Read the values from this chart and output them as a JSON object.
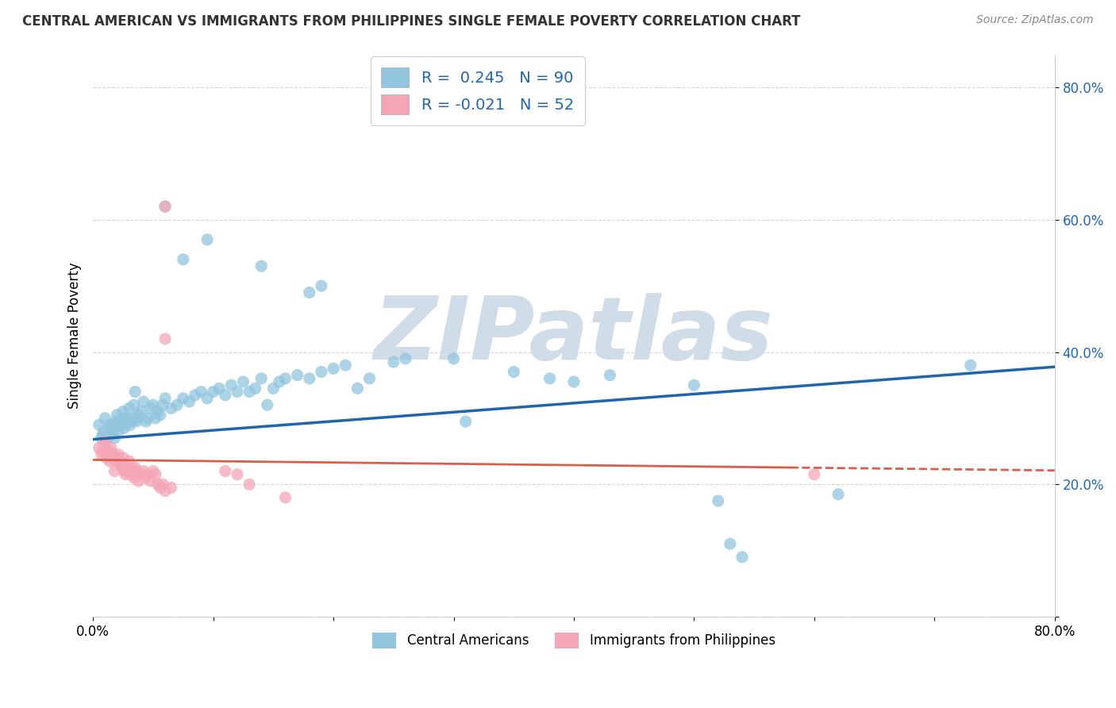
{
  "title": "CENTRAL AMERICAN VS IMMIGRANTS FROM PHILIPPINES SINGLE FEMALE POVERTY CORRELATION CHART",
  "source": "Source: ZipAtlas.com",
  "ylabel": "Single Female Poverty",
  "legend_label1": "Central Americans",
  "legend_label2": "Immigrants from Philippines",
  "r1": "0.245",
  "n1": "90",
  "r2": "-0.021",
  "n2": "52",
  "blue_color": "#92c5de",
  "pink_color": "#f4a6b8",
  "blue_line_color": "#2166ac",
  "pink_line_color": "#d6604d",
  "blue_scatter": [
    [
      0.005,
      0.29
    ],
    [
      0.007,
      0.27
    ],
    [
      0.008,
      0.275
    ],
    [
      0.009,
      0.28
    ],
    [
      0.01,
      0.3
    ],
    [
      0.011,
      0.265
    ],
    [
      0.012,
      0.27
    ],
    [
      0.013,
      0.275
    ],
    [
      0.014,
      0.29
    ],
    [
      0.015,
      0.285
    ],
    [
      0.016,
      0.28
    ],
    [
      0.017,
      0.29
    ],
    [
      0.018,
      0.27
    ],
    [
      0.019,
      0.295
    ],
    [
      0.02,
      0.305
    ],
    [
      0.021,
      0.28
    ],
    [
      0.022,
      0.29
    ],
    [
      0.023,
      0.295
    ],
    [
      0.024,
      0.3
    ],
    [
      0.025,
      0.31
    ],
    [
      0.026,
      0.285
    ],
    [
      0.027,
      0.29
    ],
    [
      0.028,
      0.3
    ],
    [
      0.029,
      0.295
    ],
    [
      0.03,
      0.315
    ],
    [
      0.031,
      0.29
    ],
    [
      0.032,
      0.295
    ],
    [
      0.033,
      0.3
    ],
    [
      0.034,
      0.32
    ],
    [
      0.035,
      0.34
    ],
    [
      0.036,
      0.295
    ],
    [
      0.037,
      0.3
    ],
    [
      0.038,
      0.305
    ],
    [
      0.04,
      0.31
    ],
    [
      0.042,
      0.325
    ],
    [
      0.044,
      0.295
    ],
    [
      0.046,
      0.3
    ],
    [
      0.048,
      0.315
    ],
    [
      0.05,
      0.32
    ],
    [
      0.052,
      0.3
    ],
    [
      0.054,
      0.31
    ],
    [
      0.056,
      0.305
    ],
    [
      0.058,
      0.32
    ],
    [
      0.06,
      0.33
    ],
    [
      0.065,
      0.315
    ],
    [
      0.07,
      0.32
    ],
    [
      0.075,
      0.33
    ],
    [
      0.08,
      0.325
    ],
    [
      0.085,
      0.335
    ],
    [
      0.09,
      0.34
    ],
    [
      0.095,
      0.33
    ],
    [
      0.1,
      0.34
    ],
    [
      0.105,
      0.345
    ],
    [
      0.11,
      0.335
    ],
    [
      0.115,
      0.35
    ],
    [
      0.12,
      0.34
    ],
    [
      0.125,
      0.355
    ],
    [
      0.13,
      0.34
    ],
    [
      0.135,
      0.345
    ],
    [
      0.14,
      0.36
    ],
    [
      0.145,
      0.32
    ],
    [
      0.15,
      0.345
    ],
    [
      0.155,
      0.355
    ],
    [
      0.16,
      0.36
    ],
    [
      0.17,
      0.365
    ],
    [
      0.18,
      0.36
    ],
    [
      0.19,
      0.37
    ],
    [
      0.2,
      0.375
    ],
    [
      0.21,
      0.38
    ],
    [
      0.22,
      0.345
    ],
    [
      0.23,
      0.36
    ],
    [
      0.075,
      0.54
    ],
    [
      0.14,
      0.53
    ],
    [
      0.095,
      0.57
    ],
    [
      0.06,
      0.62
    ],
    [
      0.18,
      0.49
    ],
    [
      0.19,
      0.5
    ],
    [
      0.25,
      0.385
    ],
    [
      0.26,
      0.39
    ],
    [
      0.3,
      0.39
    ],
    [
      0.31,
      0.295
    ],
    [
      0.35,
      0.37
    ],
    [
      0.38,
      0.36
    ],
    [
      0.4,
      0.355
    ],
    [
      0.43,
      0.365
    ],
    [
      0.5,
      0.35
    ],
    [
      0.52,
      0.175
    ],
    [
      0.53,
      0.11
    ],
    [
      0.54,
      0.09
    ],
    [
      0.62,
      0.185
    ],
    [
      0.73,
      0.38
    ]
  ],
  "pink_scatter": [
    [
      0.005,
      0.255
    ],
    [
      0.007,
      0.245
    ],
    [
      0.008,
      0.25
    ],
    [
      0.009,
      0.26
    ],
    [
      0.01,
      0.265
    ],
    [
      0.011,
      0.24
    ],
    [
      0.012,
      0.245
    ],
    [
      0.013,
      0.25
    ],
    [
      0.014,
      0.235
    ],
    [
      0.015,
      0.255
    ],
    [
      0.016,
      0.24
    ],
    [
      0.017,
      0.245
    ],
    [
      0.018,
      0.22
    ],
    [
      0.019,
      0.235
    ],
    [
      0.02,
      0.24
    ],
    [
      0.021,
      0.245
    ],
    [
      0.022,
      0.235
    ],
    [
      0.023,
      0.23
    ],
    [
      0.024,
      0.225
    ],
    [
      0.025,
      0.24
    ],
    [
      0.026,
      0.22
    ],
    [
      0.027,
      0.215
    ],
    [
      0.028,
      0.225
    ],
    [
      0.029,
      0.22
    ],
    [
      0.03,
      0.235
    ],
    [
      0.031,
      0.215
    ],
    [
      0.032,
      0.22
    ],
    [
      0.033,
      0.225
    ],
    [
      0.034,
      0.21
    ],
    [
      0.035,
      0.225
    ],
    [
      0.036,
      0.215
    ],
    [
      0.037,
      0.22
    ],
    [
      0.038,
      0.205
    ],
    [
      0.04,
      0.215
    ],
    [
      0.042,
      0.22
    ],
    [
      0.044,
      0.21
    ],
    [
      0.046,
      0.215
    ],
    [
      0.048,
      0.205
    ],
    [
      0.05,
      0.22
    ],
    [
      0.052,
      0.215
    ],
    [
      0.054,
      0.2
    ],
    [
      0.056,
      0.195
    ],
    [
      0.058,
      0.2
    ],
    [
      0.06,
      0.19
    ],
    [
      0.065,
      0.195
    ],
    [
      0.06,
      0.62
    ],
    [
      0.06,
      0.42
    ],
    [
      0.11,
      0.22
    ],
    [
      0.12,
      0.215
    ],
    [
      0.13,
      0.2
    ],
    [
      0.16,
      0.18
    ],
    [
      0.6,
      0.215
    ]
  ],
  "xmin": 0.0,
  "xmax": 0.8,
  "ymin": 0.0,
  "ymax": 0.85,
  "background_color": "#ffffff",
  "watermark_text": "ZIPatlas",
  "watermark_color": "#d0dce8",
  "grid_color": "#cccccc"
}
